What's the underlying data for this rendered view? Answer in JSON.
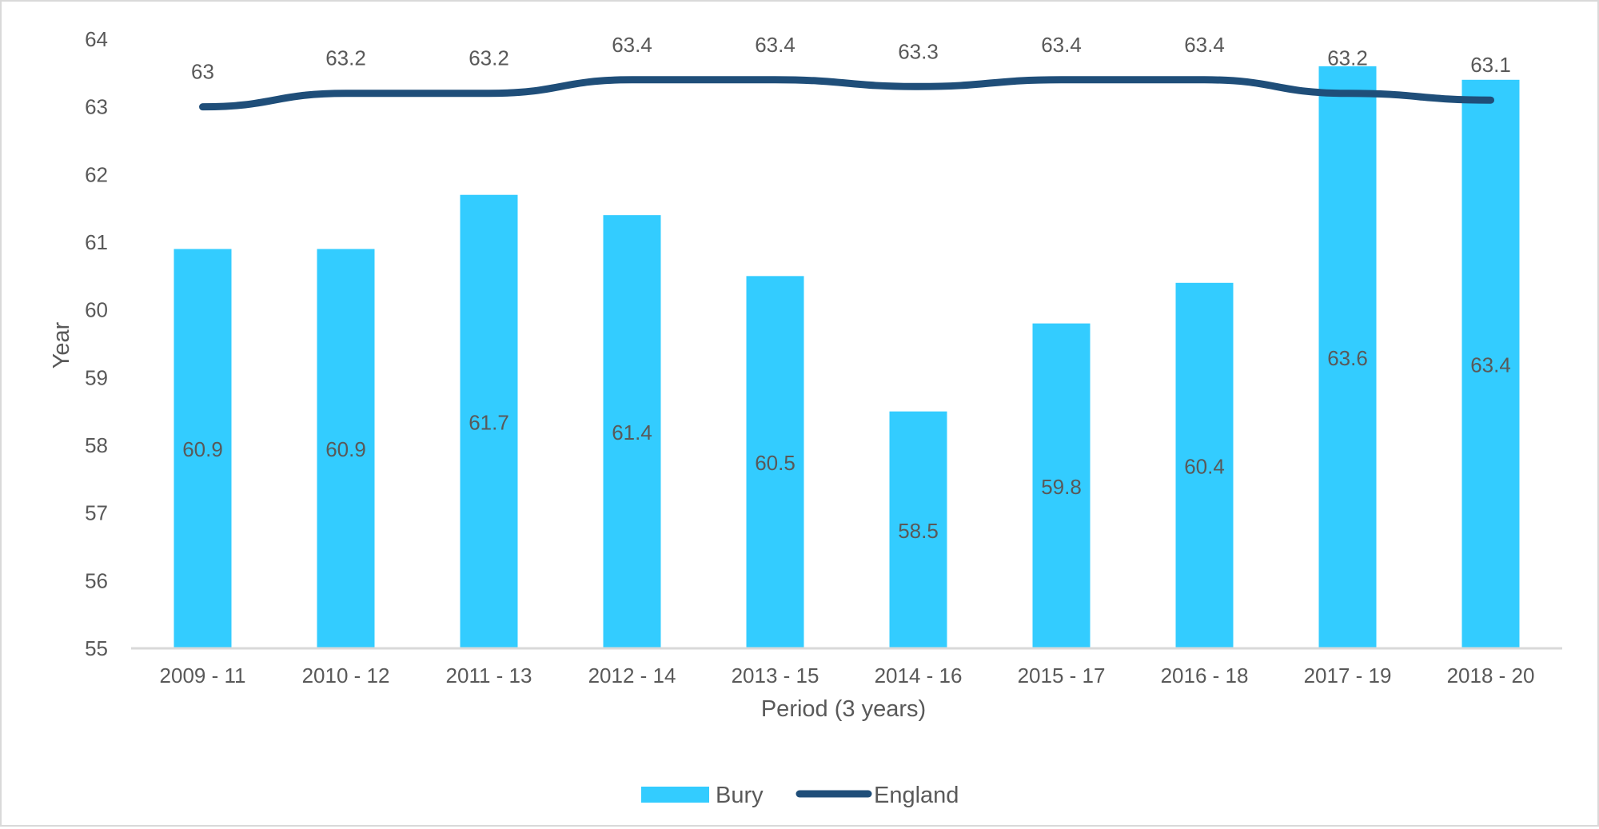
{
  "chart_data": {
    "type": "bar",
    "title": "",
    "xlabel": "Period (3 years)",
    "ylabel": "Year",
    "ylim": [
      55,
      64
    ],
    "yticks": [
      55,
      56,
      57,
      58,
      59,
      60,
      61,
      62,
      63,
      64
    ],
    "grid": false,
    "legend_position": "bottom",
    "categories": [
      "2009 - 11",
      "2010 - 12",
      "2011 - 13",
      "2012 - 14",
      "2013 - 15",
      "2014 - 16",
      "2015 - 17",
      "2016 - 18",
      "2017 - 19",
      "2018 - 20"
    ],
    "series": [
      {
        "name": "Bury",
        "type": "bar",
        "color": "#33ccff",
        "values": [
          60.9,
          60.9,
          61.7,
          61.4,
          60.5,
          58.5,
          59.8,
          60.4,
          63.6,
          63.4
        ],
        "labels": [
          "60.9",
          "60.9",
          "61.7",
          "61.4",
          "60.5",
          "58.5",
          "59.8",
          "60.4",
          "63.6",
          "63.4"
        ]
      },
      {
        "name": "England",
        "type": "line",
        "color": "#1f4e79",
        "values": [
          63,
          63.2,
          63.2,
          63.4,
          63.4,
          63.3,
          63.4,
          63.4,
          63.2,
          63.1
        ],
        "labels": [
          "63",
          "63.2",
          "63.2",
          "63.4",
          "63.4",
          "63.3",
          "63.4",
          "63.4",
          "63.2",
          "63.1"
        ]
      }
    ]
  }
}
